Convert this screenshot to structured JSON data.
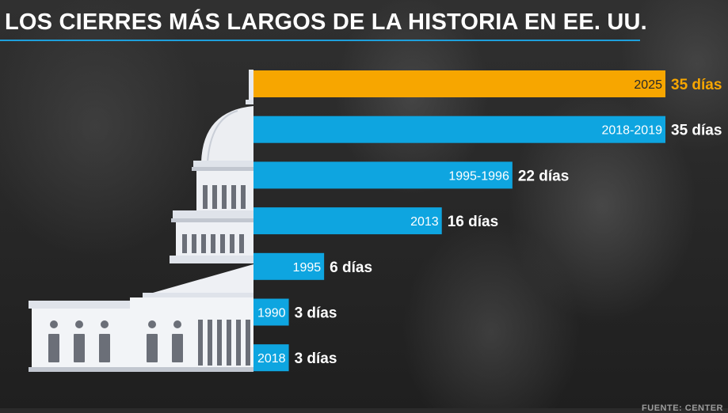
{
  "chart_data": {
    "type": "bar",
    "orientation": "horizontal",
    "title": "LOS CIERRES MÁS LARGOS DE LA HISTORIA EN EE. UU.",
    "categories": [
      "2025",
      "2018-2019",
      "1995-1996",
      "2013",
      "1995",
      "1990",
      "2018"
    ],
    "values": [
      35,
      35,
      22,
      16,
      6,
      3,
      3
    ],
    "value_labels": [
      "35 días",
      "35 días",
      "22 días",
      "16 días",
      "6 días",
      "3 días",
      "3 días"
    ],
    "xlim": [
      0,
      35
    ],
    "grid": false,
    "legend": "none",
    "colors": {
      "highlight": "#f7a600",
      "default": "#0ea5e0",
      "highlight_label": "#f7a600",
      "default_label": "#ffffff",
      "title_rule": "#1ea0dc"
    },
    "highlight_index": 0
  },
  "icons": {
    "capitol": "capitol-building-icon"
  },
  "footer": {
    "source": "FUENTE: CENTER"
  }
}
